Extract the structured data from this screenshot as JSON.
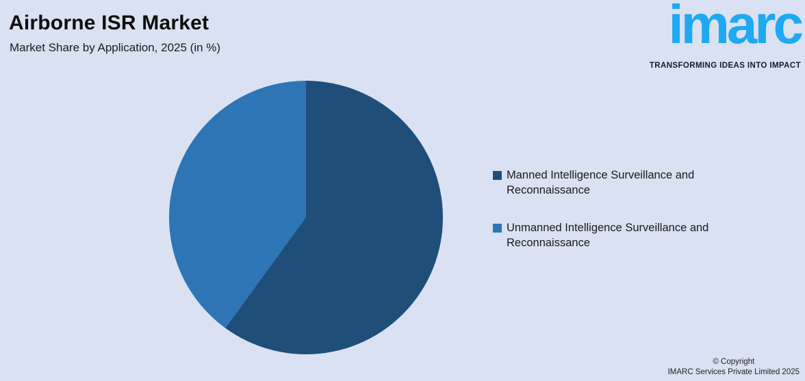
{
  "header": {
    "title": "Airborne ISR Market",
    "subtitle": "Market Share by Application, 2025 (in %)"
  },
  "logo": {
    "brand": "imarc",
    "tagline": "TRANSFORMING IDEAS INTO IMPACT",
    "brand_color": "#1FA9F1",
    "tagline_color": "#121B28"
  },
  "chart_data": {
    "type": "pie",
    "title": "Airborne ISR Market",
    "subtitle": "Market Share by Application, 2025 (in %)",
    "unit": "%",
    "start_angle_deg": 0,
    "direction": "clockwise",
    "legend_position": "right",
    "series": [
      {
        "name": "Manned Intelligence Surveillance and Reconnaissance",
        "value": 60,
        "color": "#1F4E79"
      },
      {
        "name": "Unmanned Intelligence Surveillance and Reconnaissance",
        "value": 40,
        "color": "#2E75B6"
      }
    ]
  },
  "footer": {
    "line1": "© Copyright",
    "line2": "IMARC Services Private Limited 2025"
  },
  "colors": {
    "background": "#D9E1F2",
    "title_text": "#0D0D0D",
    "body_text": "#1A1A1A"
  }
}
